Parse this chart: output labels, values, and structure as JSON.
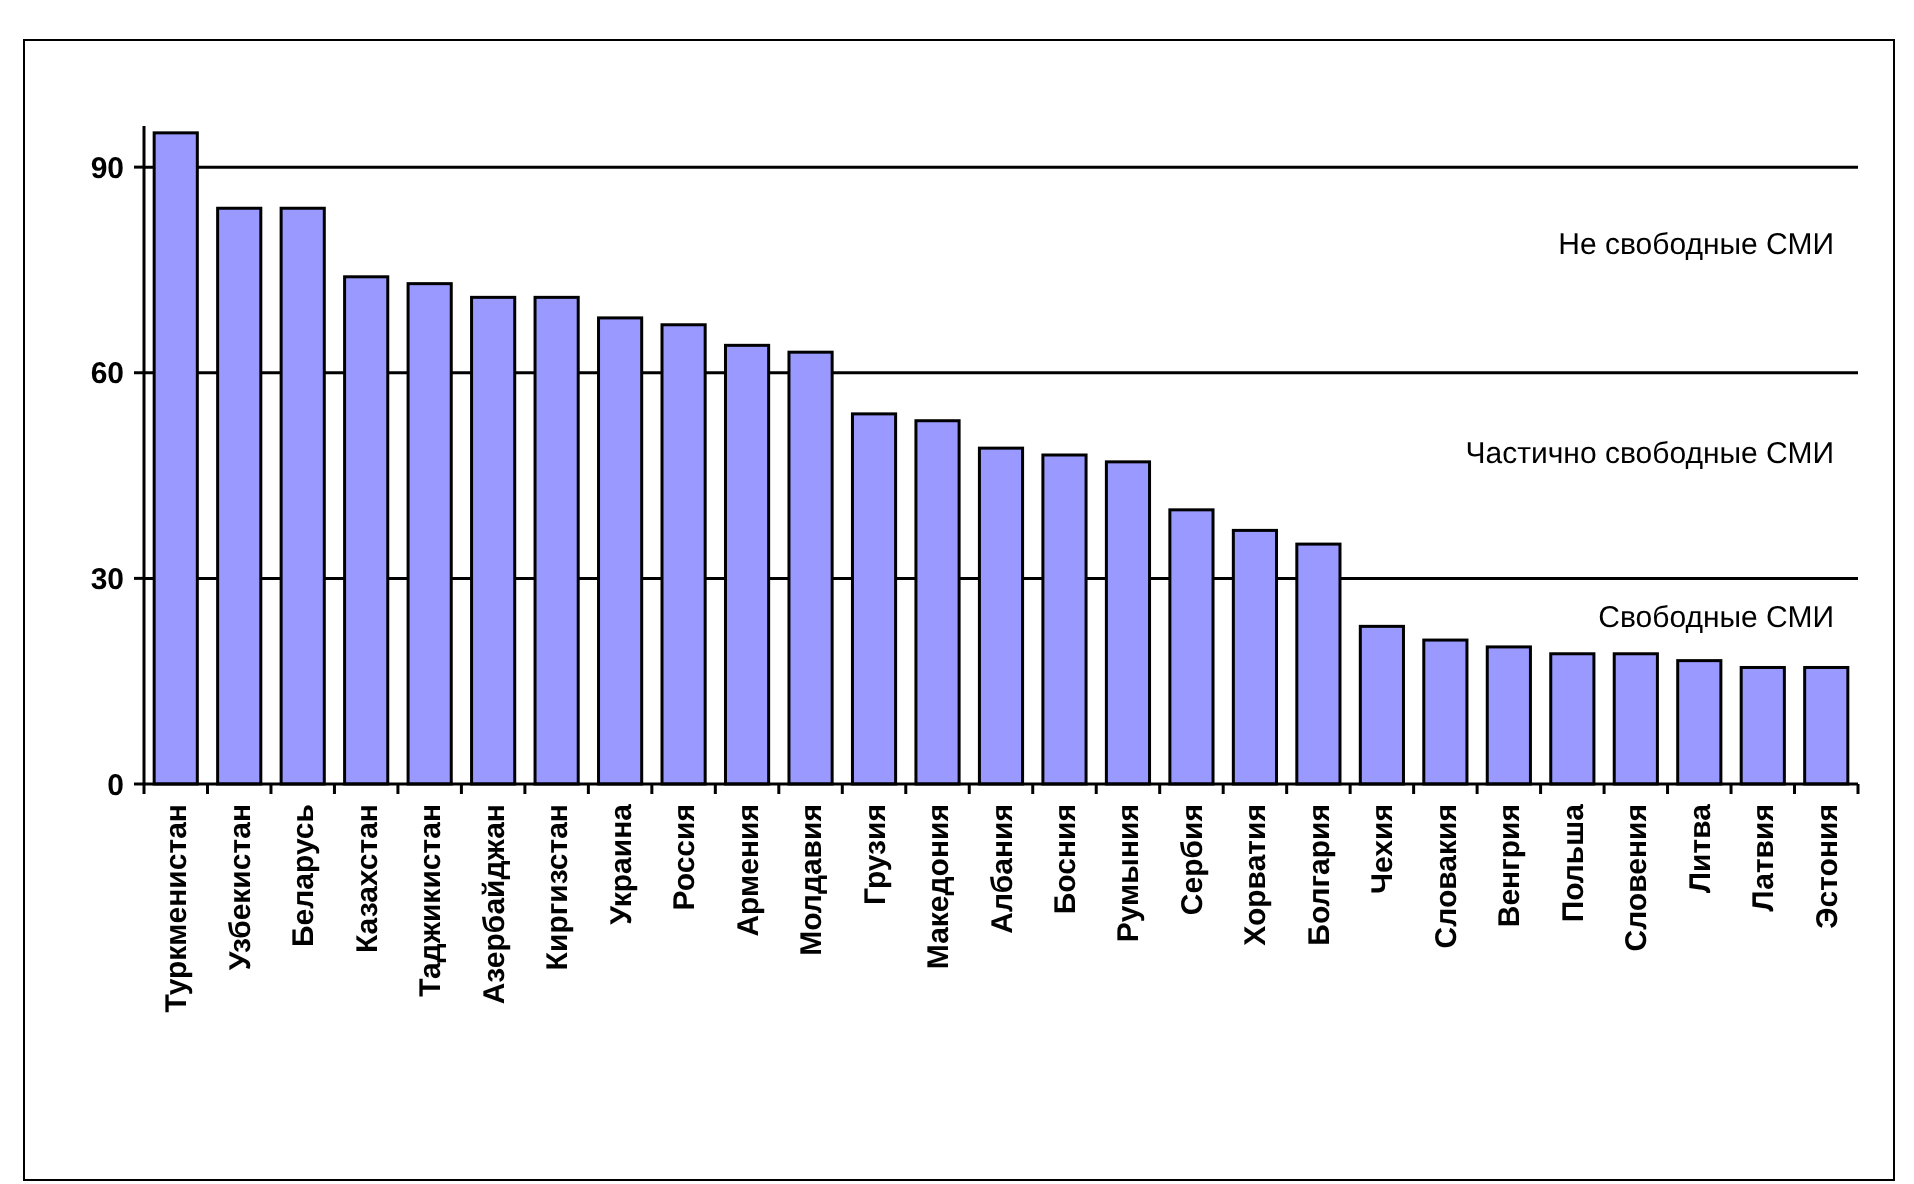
{
  "chart_data": {
    "type": "bar",
    "categories": [
      "Туркменистан",
      "Узбекистан",
      "Беларусь",
      "Казахстан",
      "Таджикистан",
      "Азербайджан",
      "Киргизстан",
      "Украина",
      "Россия",
      "Армения",
      "Молдавия",
      "Грузия",
      "Македония",
      "Албания",
      "Босния",
      "Румыния",
      "Сербия",
      "Хорватия",
      "Болгария",
      "Чехия",
      "Словакия",
      "Венгрия",
      "Польша",
      "Словения",
      "Литва",
      "Латвия",
      "Эстония"
    ],
    "values": [
      95,
      84,
      84,
      74,
      73,
      71,
      71,
      68,
      67,
      64,
      63,
      54,
      53,
      49,
      48,
      47,
      40,
      37,
      35,
      23,
      21,
      20,
      19,
      19,
      18,
      17,
      17
    ],
    "color": "#9999ff",
    "ylim": [
      0,
      96
    ],
    "yticks": [
      0,
      30,
      60,
      90
    ],
    "grid": "y",
    "annotations": [
      "Не свободные СМИ",
      "Частично свободные СМИ",
      "Свободные СМИ"
    ]
  }
}
